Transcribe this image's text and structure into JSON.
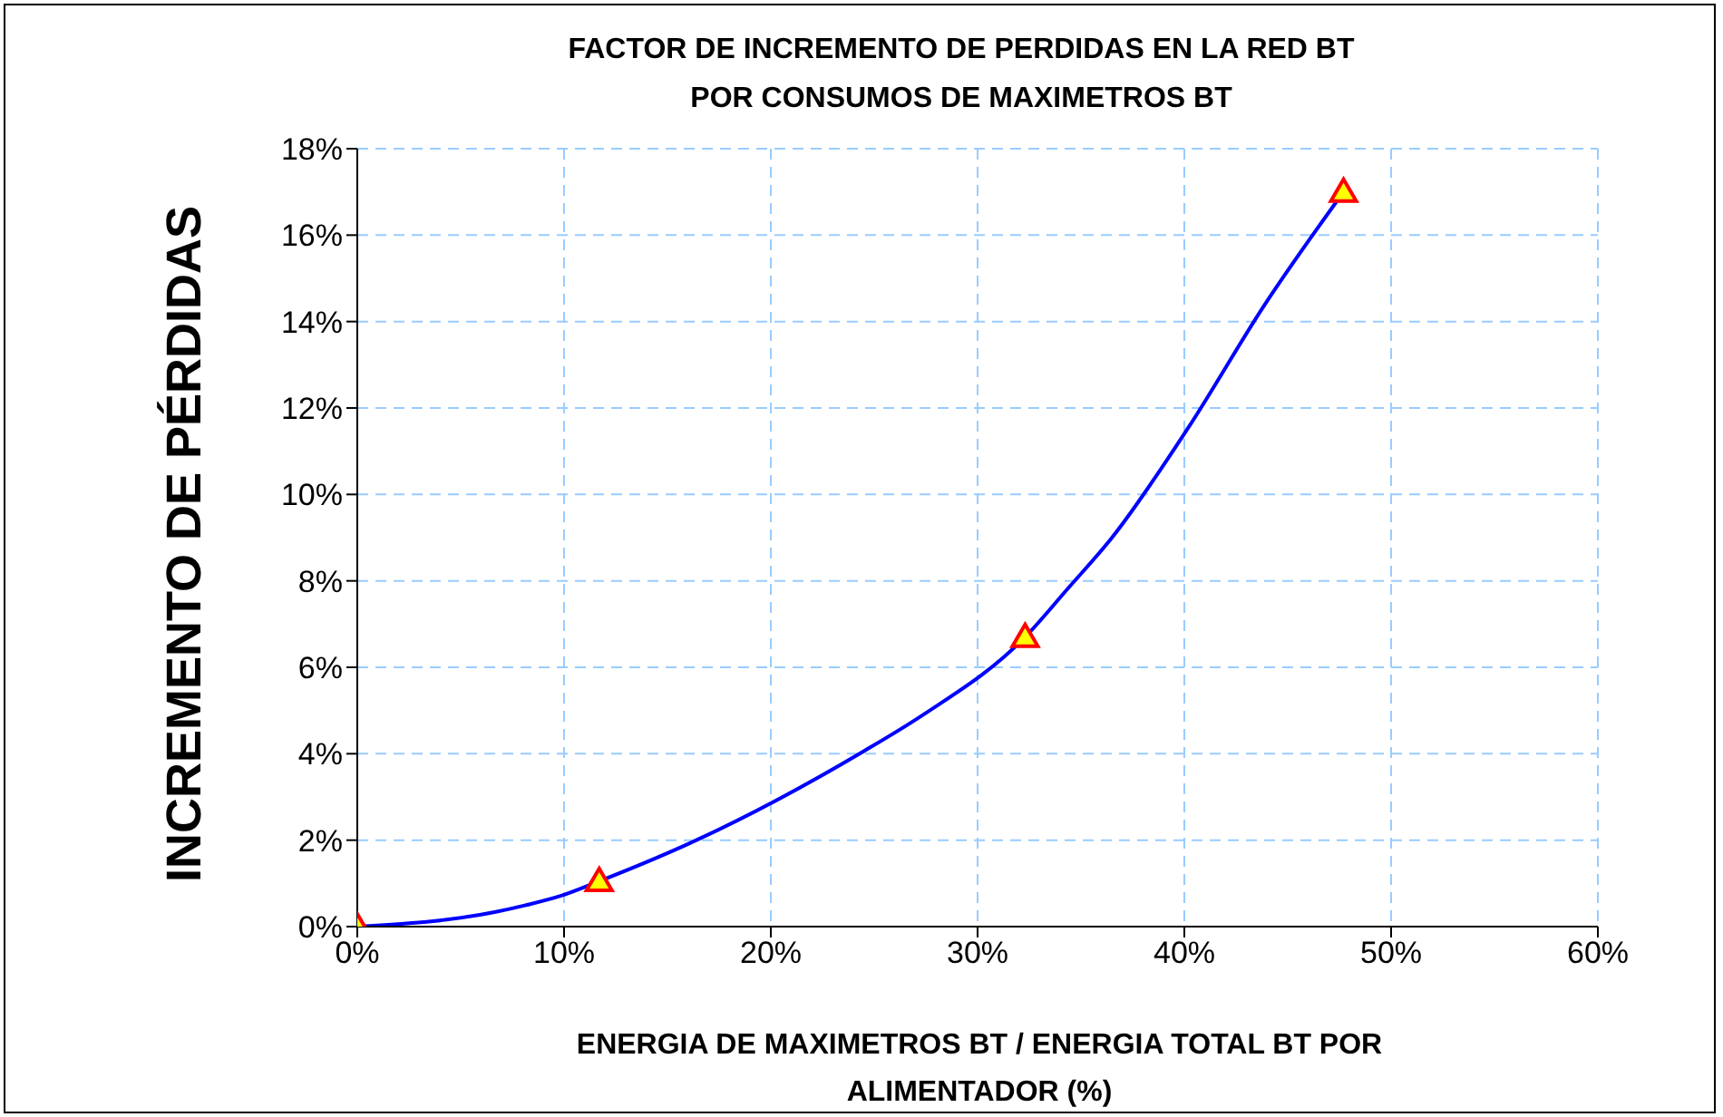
{
  "chart_data": {
    "type": "line",
    "title": "FACTOR DE INCREMENTO DE PERDIDAS EN LA RED BT\nPOR CONSUMOS DE MAXIMETROS BT",
    "xlabel": "ENERGIA DE MAXIMETROS BT / ENERGIA TOTAL BT POR\nALIMENTADOR (%)",
    "ylabel": "INCREMENTO DE PÉRDIDAS",
    "series": [
      {
        "color": "#0000ff",
        "marker": "none",
        "x": [
          0,
          6.7,
          8.1,
          9.9,
          11.7,
          16.4,
          24.5,
          27.3,
          32.3,
          34.4,
          36.5,
          40.2,
          43.9,
          47.7
        ],
        "values": [
          0,
          0.34,
          0.49,
          0.72,
          1.05,
          2.0,
          4.06,
          4.88,
          6.7,
          7.84,
          9.0,
          11.55,
          14.4,
          17.0
        ]
      },
      {
        "type": "scatter",
        "color": "#ffff00",
        "marker": "triangle",
        "x": [
          0,
          11.7,
          32.3,
          47.7
        ],
        "values": [
          0,
          1.05,
          6.7,
          17.0
        ]
      }
    ],
    "xlim": [
      0,
      60
    ],
    "xticks": [
      {
        "value": 0,
        "label": "0%"
      },
      {
        "value": 10,
        "label": "10%"
      },
      {
        "value": 20,
        "label": "20%"
      },
      {
        "value": 30,
        "label": "30%"
      },
      {
        "value": 40,
        "label": "40%"
      },
      {
        "value": 50,
        "label": "50%"
      },
      {
        "value": 60,
        "label": "60%"
      }
    ],
    "ylim": [
      0,
      18
    ],
    "yticks": [
      {
        "value": 0,
        "label": "0%"
      },
      {
        "value": 2,
        "label": "2%"
      },
      {
        "value": 4,
        "label": "4%"
      },
      {
        "value": 6,
        "label": "6%"
      },
      {
        "value": 8,
        "label": "8%"
      },
      {
        "value": 10,
        "label": "10%"
      },
      {
        "value": 12,
        "label": "12%"
      },
      {
        "value": 14,
        "label": "14%"
      },
      {
        "value": 16,
        "label": "16%"
      },
      {
        "value": 18,
        "label": "18%"
      }
    ],
    "grid": true
  }
}
